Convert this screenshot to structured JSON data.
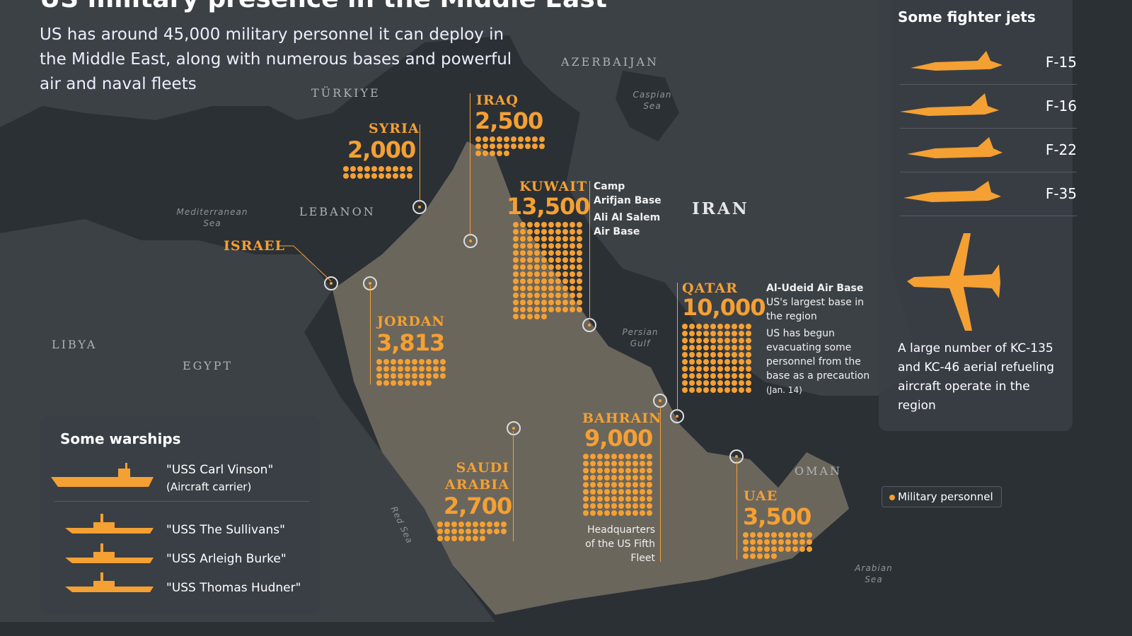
{
  "header": {
    "title": "US military presence in the Middle East",
    "subtitle": "US has around 45,000 military personnel it can deploy in the Middle East, along with numerous bases and powerful air and naval fleets"
  },
  "map_labels": {
    "countries": [
      "TÜRKIYE",
      "AZERBAIJAN",
      "LEBANON",
      "IRAN",
      "LIBYA",
      "EGYPT",
      "OMAN"
    ],
    "seas": [
      "Caspian Sea",
      "Mediterranean Sea",
      "Persian Gulf",
      "Red Sea",
      "Arabian Sea"
    ]
  },
  "deployments": [
    {
      "country": "SYRIA",
      "personnel": 2000,
      "display": "2,000"
    },
    {
      "country": "IRAQ",
      "personnel": 2500,
      "display": "2,500"
    },
    {
      "country": "KUWAIT",
      "personnel": 13500,
      "display": "13,500",
      "notes": [
        "Camp Arifjan Base",
        "Ali Al Salem Air Base"
      ]
    },
    {
      "country": "ISRAEL",
      "personnel": null,
      "display": ""
    },
    {
      "country": "JORDAN",
      "personnel": 3813,
      "display": "3,813"
    },
    {
      "country": "QATAR",
      "personnel": 10000,
      "display": "10,000",
      "notes": [
        "Al-Udeid Air Base",
        "US's largest base in the region",
        "US has begun evacuating some personnel from the base as a precaution",
        "(Jan. 14)"
      ]
    },
    {
      "country": "BAHRAIN",
      "personnel": 9000,
      "display": "9,000",
      "notes": [
        "Headquarters of the US Fifth Fleet"
      ]
    },
    {
      "country": "SAUDI ARABIA",
      "personnel": 2700,
      "display": "2,700"
    },
    {
      "country": "UAE",
      "personnel": 3500,
      "display": "3,500"
    }
  ],
  "legend": {
    "label": "Military personnel",
    "color": "#f5a033"
  },
  "jets": {
    "title": "Some fighter jets",
    "items": [
      "F-15",
      "F-16",
      "F-22",
      "F-35"
    ],
    "tanker_note": "A large number of KC-135 and KC-46 aerial refueling aircraft operate in the region"
  },
  "warships": {
    "title": "Some warships",
    "items": [
      {
        "name": "\"USS Carl Vinson\"",
        "type": "(Aircraft carrier)"
      },
      {
        "name": "\"USS The Sullivans\""
      },
      {
        "name": "\"USS Arleigh Burke\""
      },
      {
        "name": "\"USS Thomas Hudner\""
      }
    ]
  },
  "colors": {
    "accent": "#f5a033",
    "sea": "#2b3035",
    "land": "#3c4146",
    "arabia": "#6b665c"
  }
}
